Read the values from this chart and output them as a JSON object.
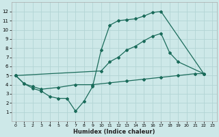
{
  "xlabel": "Humidex (Indice chaleur)",
  "bg_color": "#cde8e8",
  "grid_color": "#b2d4d4",
  "line_color": "#1a6b5a",
  "xlim": [
    -0.5,
    23.5
  ],
  "ylim": [
    0,
    13
  ],
  "xticks": [
    0,
    1,
    2,
    3,
    4,
    5,
    6,
    7,
    8,
    9,
    10,
    11,
    12,
    13,
    14,
    15,
    16,
    17,
    18,
    19,
    20,
    21,
    22,
    23
  ],
  "yticks": [
    1,
    2,
    3,
    4,
    5,
    6,
    7,
    8,
    9,
    10,
    11,
    12
  ],
  "line1_x": [
    0,
    1,
    2,
    3,
    4,
    5,
    6,
    7,
    8,
    9,
    10,
    11,
    12,
    13,
    14,
    15,
    16,
    17,
    22
  ],
  "line1_y": [
    5,
    4.1,
    3.6,
    3.3,
    2.7,
    2.5,
    2.5,
    1.1,
    2.2,
    3.8,
    7.8,
    10.5,
    11.0,
    11.1,
    11.2,
    11.5,
    11.9,
    12.0,
    5.2
  ],
  "line2_x": [
    0,
    10,
    11,
    12,
    13,
    14,
    15,
    16,
    17,
    18,
    19,
    22
  ],
  "line2_y": [
    5,
    5.5,
    6.5,
    7.0,
    7.8,
    8.2,
    8.8,
    9.3,
    9.6,
    7.5,
    6.5,
    5.2
  ],
  "line3_x": [
    0,
    1,
    2,
    3,
    5,
    7,
    9,
    11,
    13,
    15,
    17,
    19,
    21,
    22
  ],
  "line3_y": [
    5,
    4.1,
    3.8,
    3.5,
    3.7,
    4.0,
    4.0,
    4.2,
    4.4,
    4.6,
    4.8,
    5.0,
    5.2,
    5.2
  ]
}
